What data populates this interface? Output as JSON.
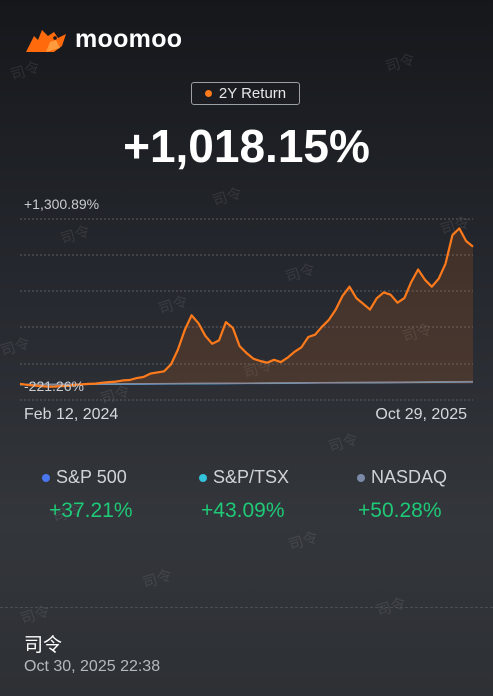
{
  "brand": {
    "name": "moomoo"
  },
  "badge": {
    "label": "2Y Return"
  },
  "headline": {
    "return": "+1,018.15%"
  },
  "chart_data": {
    "type": "line",
    "x_range": [
      "Feb 12, 2024",
      "Oct 29, 2025"
    ],
    "y_max_label": "+1,300.89%",
    "y_min_label": "-221.26%",
    "ylim": [
      -221.26,
      1300.89
    ],
    "series": [
      {
        "name": "2Y Return",
        "color": "#ff7a1a",
        "values": [
          -150,
          -158,
          -164,
          -170,
          -175,
          -174,
          -170,
          -168,
          -158,
          -155,
          -150,
          -148,
          -140,
          -135,
          -130,
          -120,
          -116,
          -100,
          -90,
          -60,
          -50,
          -40,
          20,
          150,
          320,
          450,
          380,
          270,
          200,
          230,
          390,
          340,
          180,
          120,
          70,
          50,
          35,
          60,
          40,
          80,
          130,
          170,
          260,
          280,
          350,
          410,
          500,
          620,
          700,
          600,
          550,
          500,
          600,
          650,
          630,
          560,
          600,
          740,
          850,
          760,
          700,
          770,
          900,
          1150,
          1210,
          1100,
          1050
        ]
      },
      {
        "name": "S&P 500",
        "color": "#4a76f0",
        "values": [
          -158,
          -156,
          -154,
          -152,
          -150,
          -148,
          -146,
          -144,
          -142,
          -140,
          -138,
          -136,
          -134
        ]
      },
      {
        "name": "S&P/TSX",
        "color": "#33c3dc",
        "values": [
          -157,
          -155,
          -153,
          -151,
          -149,
          -147,
          -145,
          -143,
          -141,
          -139,
          -137,
          -135,
          -132
        ]
      },
      {
        "name": "NASDAQ",
        "color": "#7a8aa8",
        "values": [
          -156,
          -154,
          -152,
          -150,
          -148,
          -146,
          -144,
          -142,
          -140,
          -138,
          -136,
          -133,
          -130
        ]
      }
    ],
    "grid": true
  },
  "benchmarks": [
    {
      "name": "S&P 500",
      "value": "+37.21%",
      "color": "#4a76f0"
    },
    {
      "name": "S&P/TSX",
      "value": "+43.09%",
      "color": "#33c3dc"
    },
    {
      "name": "NASDAQ",
      "value": "+50.28%",
      "color": "#7a8aa8"
    }
  ],
  "footer": {
    "user": "司令",
    "timestamp": "Oct 30, 2025 22:38"
  },
  "watermark": "司令"
}
